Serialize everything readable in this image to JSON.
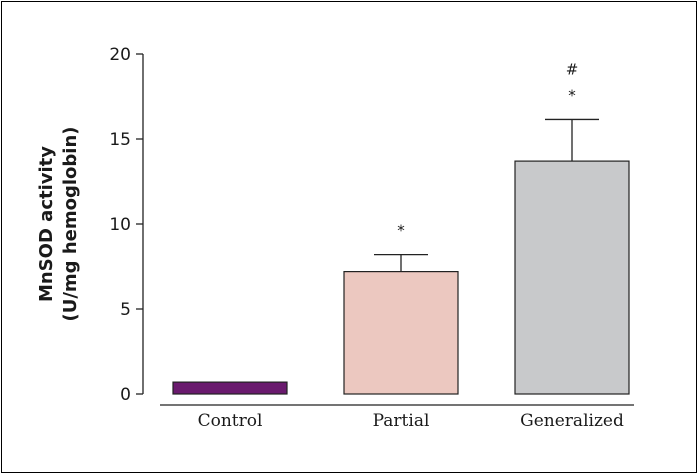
{
  "chart_data": {
    "type": "bar",
    "categories": [
      "Control",
      "Partial",
      "Generalized"
    ],
    "values": [
      0.7,
      7.2,
      13.7
    ],
    "errors": [
      0,
      1.0,
      2.45
    ],
    "bar_colors": [
      "#6a1a6e",
      "#ecc8c0",
      "#c8c9cb"
    ],
    "annotations": [
      [],
      [
        "*"
      ],
      [
        "*",
        "#"
      ]
    ],
    "ylabel_lines": [
      "MnSOD activity",
      "(U/mg hemoglobin)"
    ],
    "xlabel": "",
    "title": "",
    "ylim": [
      0,
      20
    ],
    "yticks": [
      0,
      5,
      10,
      15,
      20
    ],
    "grid": false
  }
}
